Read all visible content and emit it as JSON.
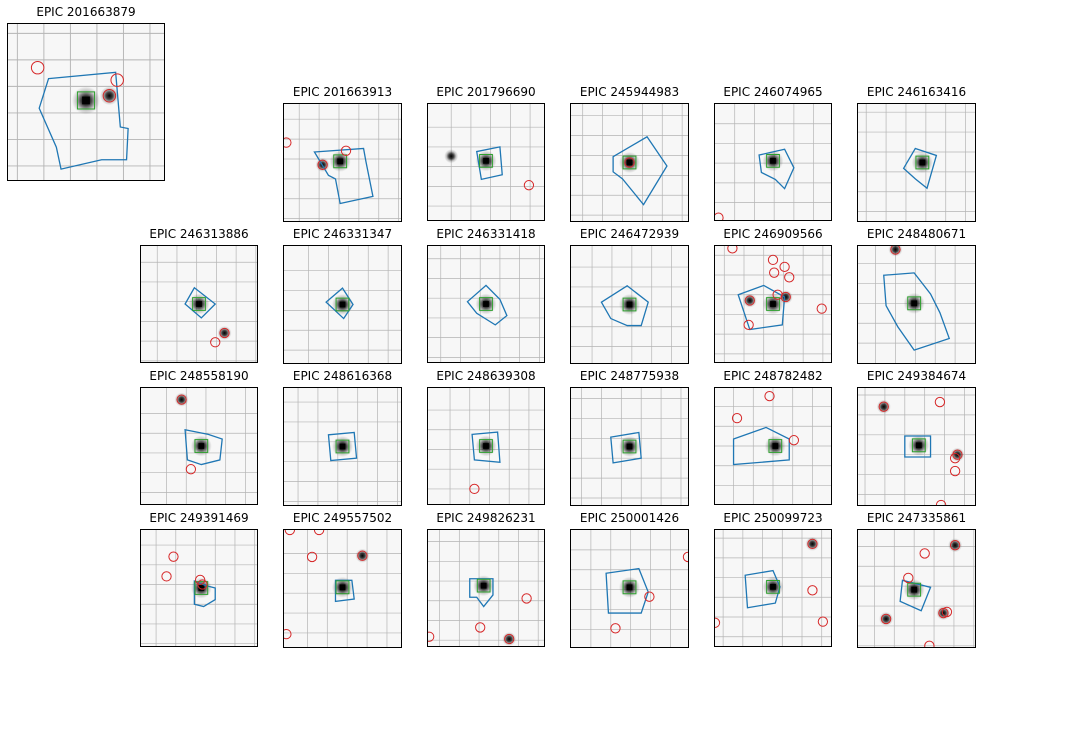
{
  "figure": {
    "colors": {
      "aperture": "#1f77b4",
      "pixel_box": "#2ca02c",
      "neighbor": "#d62728",
      "grid": "#b4b4b4",
      "star": "#000000"
    },
    "panels": [
      {
        "title": "EPIC 201663879",
        "target": [
          0.5,
          0.49
        ],
        "neighbors": [
          [
            0.19,
            0.28
          ],
          [
            0.65,
            0.46
          ],
          [
            0.7,
            0.36
          ]
        ],
        "extra_stars": [
          [
            0.65,
            0.46
          ]
        ]
      },
      {
        "title": "EPIC 201663913",
        "target": [
          0.48,
          0.49
        ],
        "neighbors": [
          [
            0.02,
            0.33
          ],
          [
            0.53,
            0.4
          ],
          [
            0.33,
            0.52
          ]
        ],
        "extra_stars": [
          [
            0.33,
            0.52
          ]
        ]
      },
      {
        "title": "EPIC 201796690",
        "target": [
          0.5,
          0.49
        ],
        "neighbors": [
          [
            0.87,
            0.7
          ]
        ],
        "extra_stars": [
          [
            0.2,
            0.45
          ]
        ]
      },
      {
        "title": "EPIC 245944983",
        "target": [
          0.5,
          0.5
        ],
        "neighbors": [
          [
            0.5,
            0.5
          ]
        ],
        "extra_stars": []
      },
      {
        "title": "EPIC 246074965",
        "target": [
          0.5,
          0.49
        ],
        "neighbors": [
          [
            0.03,
            0.98
          ]
        ],
        "extra_stars": []
      },
      {
        "title": "EPIC 246163416",
        "target": [
          0.55,
          0.5
        ],
        "neighbors": [],
        "extra_stars": []
      },
      {
        "title": "EPIC 246313886",
        "target": [
          0.5,
          0.5
        ],
        "neighbors": [
          [
            0.72,
            0.75
          ],
          [
            0.64,
            0.83
          ]
        ],
        "extra_stars": [
          [
            0.72,
            0.75
          ]
        ]
      },
      {
        "title": "EPIC 246331347",
        "target": [
          0.5,
          0.5
        ],
        "neighbors": [],
        "extra_stars": []
      },
      {
        "title": "EPIC 246331418",
        "target": [
          0.5,
          0.5
        ],
        "neighbors": [],
        "extra_stars": []
      },
      {
        "title": "EPIC 246472939",
        "target": [
          0.5,
          0.5
        ],
        "neighbors": [],
        "extra_stars": []
      },
      {
        "title": "EPIC 246909566",
        "target": [
          0.5,
          0.5
        ],
        "neighbors": [
          [
            0.15,
            0.02
          ],
          [
            0.5,
            0.12
          ],
          [
            0.6,
            0.18
          ],
          [
            0.51,
            0.23
          ],
          [
            0.64,
            0.27
          ],
          [
            0.3,
            0.47
          ],
          [
            0.54,
            0.42
          ],
          [
            0.61,
            0.44
          ],
          [
            0.92,
            0.54
          ],
          [
            0.29,
            0.68
          ]
        ],
        "extra_stars": [
          [
            0.3,
            0.47
          ],
          [
            0.61,
            0.44
          ]
        ]
      },
      {
        "title": "EPIC 248480671",
        "target": [
          0.48,
          0.49
        ],
        "neighbors": [
          [
            0.32,
            0.03
          ]
        ],
        "extra_stars": [
          [
            0.32,
            0.03
          ]
        ]
      },
      {
        "title": "EPIC 248558190",
        "target": [
          0.52,
          0.5
        ],
        "neighbors": [
          [
            0.35,
            0.1
          ],
          [
            0.43,
            0.7
          ]
        ],
        "extra_stars": [
          [
            0.35,
            0.1
          ]
        ]
      },
      {
        "title": "EPIC 248616368",
        "target": [
          0.5,
          0.5
        ],
        "neighbors": [],
        "extra_stars": []
      },
      {
        "title": "EPIC 248639308",
        "target": [
          0.5,
          0.5
        ],
        "neighbors": [
          [
            0.4,
            0.87
          ]
        ],
        "extra_stars": []
      },
      {
        "title": "EPIC 248775938",
        "target": [
          0.5,
          0.5
        ],
        "neighbors": [],
        "extra_stars": []
      },
      {
        "title": "EPIC 248782482",
        "target": [
          0.52,
          0.5
        ],
        "neighbors": [
          [
            0.19,
            0.26
          ],
          [
            0.47,
            0.07
          ],
          [
            0.68,
            0.45
          ]
        ],
        "extra_stars": []
      },
      {
        "title": "EPIC 249384674",
        "target": [
          0.52,
          0.49
        ],
        "neighbors": [
          [
            0.22,
            0.16
          ],
          [
            0.7,
            0.12
          ],
          [
            0.83,
            0.6
          ],
          [
            0.85,
            0.57
          ],
          [
            0.83,
            0.71
          ],
          [
            0.71,
            1.0
          ]
        ],
        "extra_stars": [
          [
            0.22,
            0.16
          ],
          [
            0.85,
            0.57
          ]
        ]
      },
      {
        "title": "EPIC 249391469",
        "target": [
          0.52,
          0.5
        ],
        "neighbors": [
          [
            0.28,
            0.23
          ],
          [
            0.22,
            0.4
          ],
          [
            0.51,
            0.43
          ],
          [
            0.53,
            0.47
          ]
        ],
        "extra_stars": []
      },
      {
        "title": "EPIC 249557502",
        "target": [
          0.5,
          0.49
        ],
        "neighbors": [
          [
            0.05,
            0.0
          ],
          [
            0.3,
            0.0
          ],
          [
            0.24,
            0.23
          ],
          [
            0.67,
            0.22
          ],
          [
            0.02,
            0.89
          ]
        ],
        "extra_stars": [
          [
            0.67,
            0.22
          ]
        ]
      },
      {
        "title": "EPIC 249826231",
        "target": [
          0.48,
          0.48
        ],
        "neighbors": [
          [
            0.85,
            0.59
          ],
          [
            0.45,
            0.84
          ],
          [
            0.7,
            0.94
          ],
          [
            0.01,
            0.92
          ]
        ],
        "extra_stars": [
          [
            0.7,
            0.94
          ]
        ]
      },
      {
        "title": "EPIC 250001426",
        "target": [
          0.5,
          0.49
        ],
        "neighbors": [
          [
            0.67,
            0.57
          ],
          [
            0.38,
            0.84
          ],
          [
            1.0,
            0.23
          ]
        ],
        "extra_stars": []
      },
      {
        "title": "EPIC 250099723",
        "target": [
          0.5,
          0.49
        ],
        "neighbors": [
          [
            0.84,
            0.12
          ],
          [
            0.84,
            0.52
          ],
          [
            0.93,
            0.79
          ],
          [
            0.0,
            0.8
          ]
        ],
        "extra_stars": [
          [
            0.84,
            0.12
          ]
        ]
      },
      {
        "title": "EPIC 247335861",
        "target": [
          0.48,
          0.51
        ],
        "neighbors": [
          [
            0.57,
            0.2
          ],
          [
            0.83,
            0.13
          ],
          [
            0.43,
            0.41
          ],
          [
            0.73,
            0.71
          ],
          [
            0.76,
            0.7
          ],
          [
            0.24,
            0.76
          ],
          [
            0.61,
            0.99
          ]
        ],
        "extra_stars": [
          [
            0.83,
            0.13
          ],
          [
            0.73,
            0.71
          ],
          [
            0.24,
            0.76
          ]
        ]
      }
    ]
  }
}
